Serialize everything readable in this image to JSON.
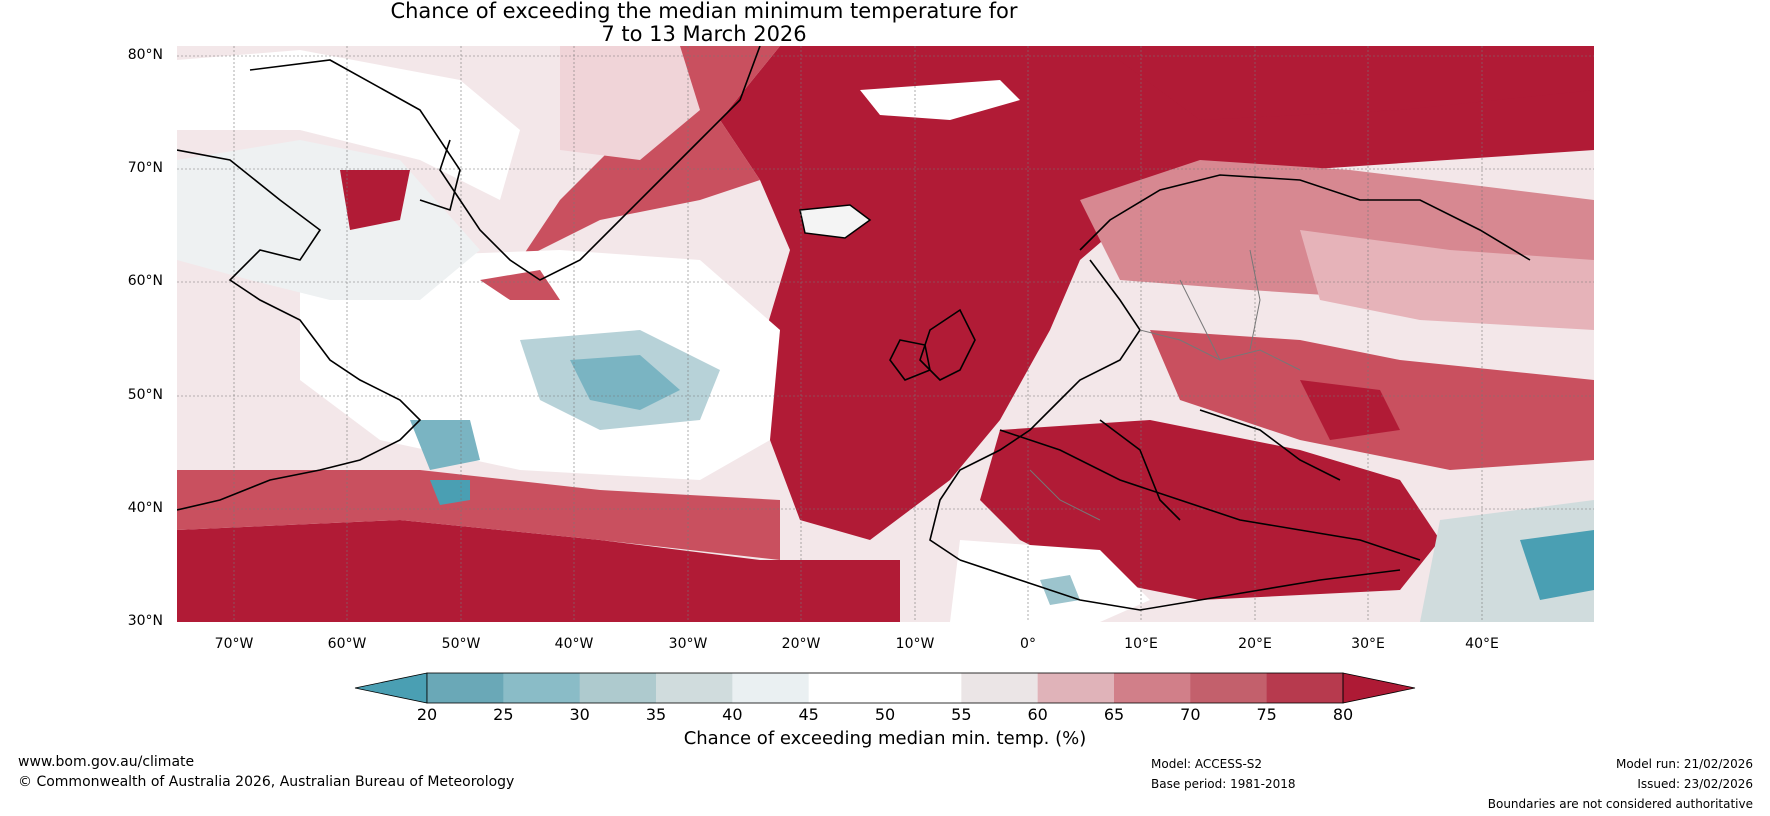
{
  "title": {
    "line1": "Chance of exceeding the median minimum temperature for",
    "line2": "7 to 13 March 2026"
  },
  "map": {
    "lat_labels": [
      "80°N",
      "70°N",
      "60°N",
      "50°N",
      "40°N",
      "30°N"
    ],
    "lon_labels": [
      "70°W",
      "60°W",
      "50°W",
      "40°W",
      "30°W",
      "20°W",
      "10°W",
      "0°",
      "10°E",
      "20°E",
      "30°E",
      "40°E"
    ],
    "lat_range": [
      30,
      81
    ],
    "lon_range": [
      -75,
      50
    ],
    "land_colors": {
      "high": "#b11b36",
      "mid": "#c9505f",
      "low": "#e6b3b9",
      "neutral": "#ffffff",
      "cool": "#4a9fb3"
    }
  },
  "colorbar": {
    "ticks": [
      "20",
      "25",
      "30",
      "35",
      "40",
      "45",
      "50",
      "55",
      "60",
      "65",
      "70",
      "75",
      "80"
    ],
    "colors": [
      "#4a9fb3",
      "#6aa8b7",
      "#8abcc7",
      "#aecace",
      "#d0dcdd",
      "#eaf0f2",
      "#ffffff",
      "#ffffff",
      "#ebe5e6",
      "#e0b3b9",
      "#d17f89",
      "#c3606c",
      "#b73a4e",
      "#ae1a35"
    ],
    "label": "Chance of exceeding median min. temp. (%)"
  },
  "footer": {
    "website": "www.bom.gov.au/climate",
    "copyright": "© Commonwealth of Australia 2026, Australian Bureau of Meteorology",
    "model": "Model: ACCESS-S2",
    "base_period": "Base period: 1981-2018",
    "model_run": "Model run: 21/02/2026",
    "issued": "Issued: 23/02/2026",
    "disclaimer": "Boundaries are not considered authoritative"
  }
}
